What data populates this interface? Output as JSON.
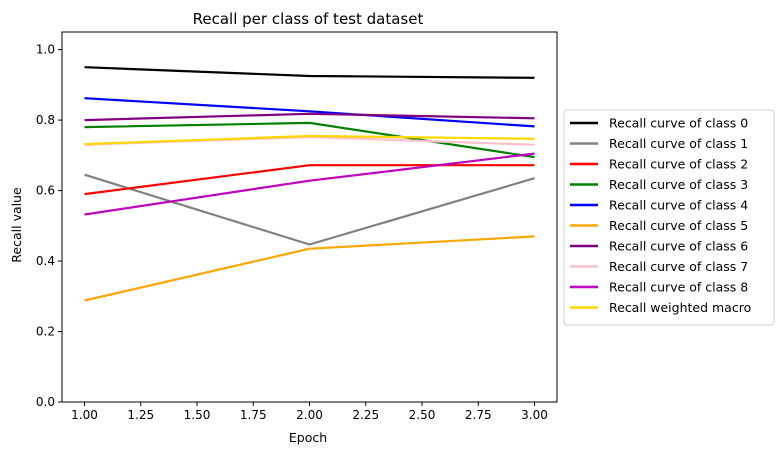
{
  "chart_data": {
    "type": "line",
    "title": "Recall per class of test dataset",
    "xlabel": "Epoch",
    "ylabel": "Recall value",
    "xlim": [
      0.9,
      3.1
    ],
    "ylim": [
      0.0,
      1.05
    ],
    "x_ticks": [
      "1.00",
      "1.25",
      "1.50",
      "1.75",
      "2.00",
      "2.25",
      "2.50",
      "2.75",
      "3.00"
    ],
    "y_ticks": [
      "0.0",
      "0.2",
      "0.4",
      "0.6",
      "0.8",
      "1.0"
    ],
    "grid": false,
    "legend_position": "outside-right",
    "x": [
      1,
      2,
      3
    ],
    "series": [
      {
        "name": "Recall curve of class 0",
        "color": "#000000",
        "values": [
          0.95,
          0.925,
          0.92
        ]
      },
      {
        "name": "Recall curve of class 1",
        "color": "#808080",
        "values": [
          0.645,
          0.447,
          0.635
        ]
      },
      {
        "name": "Recall curve of class 2",
        "color": "#ff0000",
        "values": [
          0.59,
          0.672,
          0.672
        ]
      },
      {
        "name": "Recall curve of class 3",
        "color": "#008000",
        "values": [
          0.78,
          0.792,
          0.695
        ]
      },
      {
        "name": "Recall curve of class 4",
        "color": "#0000ff",
        "values": [
          0.862,
          0.825,
          0.782
        ]
      },
      {
        "name": "Recall curve of class 5",
        "color": "#ffa500",
        "values": [
          0.288,
          0.435,
          0.47
        ]
      },
      {
        "name": "Recall curve of class 6",
        "color": "#800080",
        "values": [
          0.8,
          0.818,
          0.805
        ]
      },
      {
        "name": "Recall curve of class 7",
        "color": "#ffc0cb",
        "values": [
          0.73,
          0.752,
          0.73
        ]
      },
      {
        "name": "Recall curve of class 8",
        "color": "#bf00bf",
        "values": [
          0.532,
          0.628,
          0.705
        ]
      },
      {
        "name": "Recall weighted macro",
        "color": "#ffd700",
        "values": [
          0.732,
          0.755,
          0.747
        ]
      }
    ]
  }
}
